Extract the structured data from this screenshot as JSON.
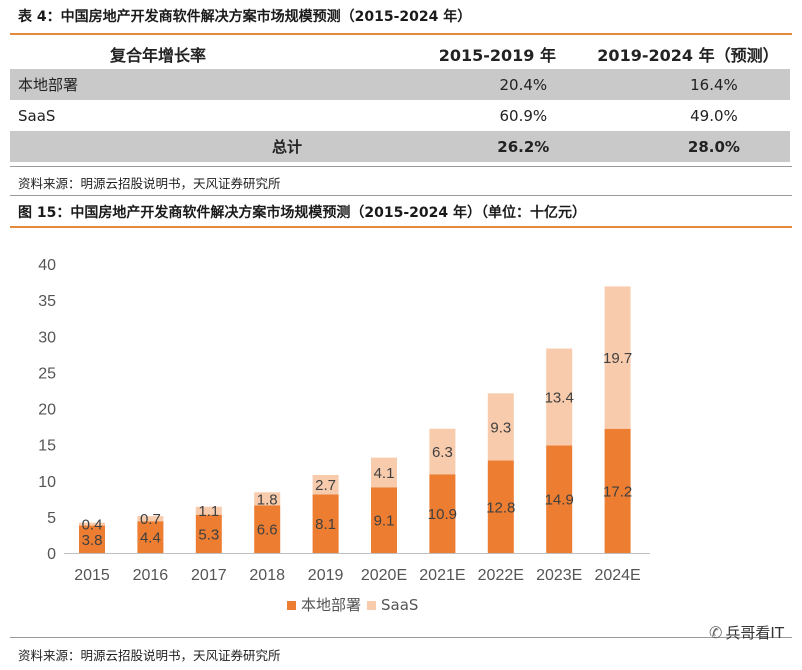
{
  "table": {
    "title": "表 4：中国房地产开发商软件解决方案市场规模预测（2015-2024 年）",
    "headers": [
      "复合年增长率",
      "2015-2019 年",
      "2019-2024 年（预测）"
    ],
    "rows": [
      {
        "label": "本地部署",
        "v1": "20.4%",
        "v2": "16.4%"
      },
      {
        "label": "SaaS",
        "v1": "60.9%",
        "v2": "49.0%"
      },
      {
        "label": "总计",
        "v1": "26.2%",
        "v2": "28.0%"
      }
    ],
    "source": "资料来源：明源云招股说明书，天风证券研究所"
  },
  "figure": {
    "title": "图 15：中国房地产开发商软件解决方案市场规模预测（2015-2024 年）（单位：十亿元）",
    "source": "资料来源：明源云招股说明书，天风证券研究所"
  },
  "chart_data": {
    "type": "bar",
    "stacked": true,
    "title": "中国房地产开发商软件解决方案市场规模预测（2015-2024 年）（单位：十亿元）",
    "categories": [
      "2015",
      "2016",
      "2017",
      "2018",
      "2019",
      "2020E",
      "2021E",
      "2022E",
      "2023E",
      "2024E"
    ],
    "series": [
      {
        "name": "本地部署",
        "color": "#ed7d31",
        "values": [
          3.8,
          4.4,
          5.3,
          6.6,
          8.1,
          9.1,
          10.9,
          12.8,
          14.9,
          17.2
        ]
      },
      {
        "name": "SaaS",
        "color": "#f8cbad",
        "values": [
          0.4,
          0.7,
          1.1,
          1.8,
          2.7,
          4.1,
          6.3,
          9.3,
          13.4,
          19.7
        ]
      }
    ],
    "yticks": [
      0,
      5,
      10,
      15,
      20,
      25,
      30,
      35,
      40
    ],
    "ylim": [
      0,
      40
    ],
    "legend": "bottom-center",
    "grid": false
  },
  "watermark": {
    "text": "兵哥看IT",
    "icon": "wechat-icon"
  }
}
